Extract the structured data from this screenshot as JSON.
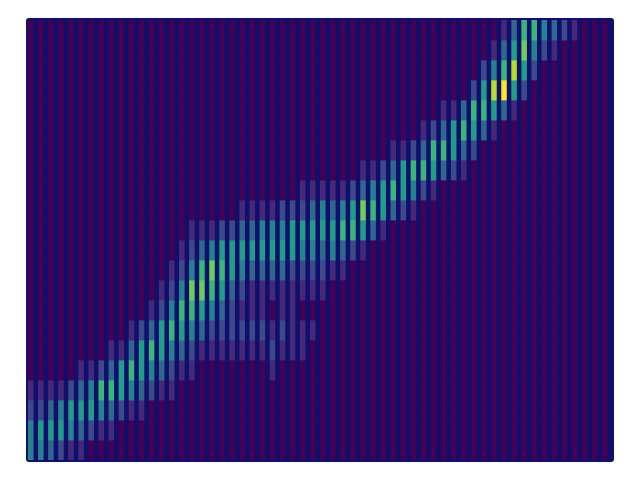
{
  "chart_data": {
    "type": "heatmap",
    "color": "viridis",
    "tick_labels": false,
    "xlim": [
      0,
      58
    ],
    "ylim": [
      0,
      22
    ],
    "color_range": [
      0,
      9
    ],
    "cells": [
      [
        4,
        4,
        2,
        1,
        0,
        0,
        0,
        0,
        0,
        0,
        0,
        0,
        0,
        0,
        0,
        0,
        0,
        0,
        0,
        0,
        0,
        0
      ],
      [
        4,
        5,
        2,
        1,
        0,
        0,
        0,
        0,
        0,
        0,
        0,
        0,
        0,
        0,
        0,
        0,
        0,
        0,
        0,
        0,
        0,
        0
      ],
      [
        3,
        5,
        3,
        1,
        0,
        0,
        0,
        0,
        0,
        0,
        0,
        0,
        0,
        0,
        0,
        0,
        0,
        0,
        0,
        0,
        0,
        0
      ],
      [
        2,
        5,
        4,
        1,
        0,
        0,
        0,
        0,
        0,
        0,
        0,
        0,
        0,
        0,
        0,
        0,
        0,
        0,
        0,
        0,
        0,
        0
      ],
      [
        1,
        4,
        5,
        2,
        0,
        0,
        0,
        0,
        0,
        0,
        0,
        0,
        0,
        0,
        0,
        0,
        0,
        0,
        0,
        0,
        0,
        0
      ],
      [
        1,
        3,
        5,
        3,
        1,
        0,
        0,
        0,
        0,
        0,
        0,
        0,
        0,
        0,
        0,
        0,
        0,
        0,
        0,
        0,
        0,
        0
      ],
      [
        0,
        2,
        5,
        4,
        1,
        0,
        0,
        0,
        0,
        0,
        0,
        0,
        0,
        0,
        0,
        0,
        0,
        0,
        0,
        0,
        0,
        0
      ],
      [
        0,
        1,
        4,
        6,
        2,
        0,
        0,
        0,
        0,
        0,
        0,
        0,
        0,
        0,
        0,
        0,
        0,
        0,
        0,
        0,
        0,
        0
      ],
      [
        0,
        1,
        3,
        6,
        3,
        1,
        0,
        0,
        0,
        0,
        0,
        0,
        0,
        0,
        0,
        0,
        0,
        0,
        0,
        0,
        0,
        0
      ],
      [
        0,
        0,
        2,
        5,
        5,
        1,
        0,
        0,
        0,
        0,
        0,
        0,
        0,
        0,
        0,
        0,
        0,
        0,
        0,
        0,
        0,
        0
      ],
      [
        0,
        0,
        1,
        4,
        6,
        3,
        1,
        0,
        0,
        0,
        0,
        0,
        0,
        0,
        0,
        0,
        0,
        0,
        0,
        0,
        0,
        0
      ],
      [
        0,
        0,
        1,
        3,
        5,
        5,
        2,
        0,
        0,
        0,
        0,
        0,
        0,
        0,
        0,
        0,
        0,
        0,
        0,
        0,
        0,
        0
      ],
      [
        0,
        0,
        0,
        2,
        4,
        6,
        3,
        1,
        0,
        0,
        0,
        0,
        0,
        0,
        0,
        0,
        0,
        0,
        0,
        0,
        0,
        0
      ],
      [
        0,
        0,
        0,
        1,
        3,
        5,
        5,
        2,
        1,
        0,
        0,
        0,
        0,
        0,
        0,
        0,
        0,
        0,
        0,
        0,
        0,
        0
      ],
      [
        0,
        0,
        0,
        1,
        2,
        4,
        6,
        4,
        2,
        1,
        0,
        0,
        0,
        0,
        0,
        0,
        0,
        0,
        0,
        0,
        0,
        0
      ],
      [
        0,
        0,
        0,
        0,
        1,
        3,
        5,
        6,
        4,
        2,
        1,
        0,
        0,
        0,
        0,
        0,
        0,
        0,
        0,
        0,
        0,
        0
      ],
      [
        0,
        0,
        0,
        0,
        1,
        2,
        4,
        6,
        7,
        4,
        2,
        1,
        0,
        0,
        0,
        0,
        0,
        0,
        0,
        0,
        0,
        0
      ],
      [
        0,
        0,
        0,
        0,
        0,
        1,
        3,
        5,
        7,
        6,
        3,
        1,
        0,
        0,
        0,
        0,
        0,
        0,
        0,
        0,
        0,
        0
      ],
      [
        0,
        0,
        0,
        0,
        0,
        1,
        2,
        4,
        6,
        7,
        4,
        1,
        0,
        0,
        0,
        0,
        0,
        0,
        0,
        0,
        0,
        0
      ],
      [
        0,
        0,
        0,
        0,
        0,
        1,
        2,
        3,
        5,
        6,
        5,
        2,
        0,
        0,
        0,
        0,
        0,
        0,
        0,
        0,
        0,
        0
      ],
      [
        0,
        0,
        0,
        0,
        0,
        1,
        2,
        2,
        3,
        5,
        5,
        2,
        0,
        0,
        0,
        0,
        0,
        0,
        0,
        0,
        0,
        0
      ],
      [
        0,
        0,
        0,
        0,
        0,
        1,
        2,
        1,
        2,
        4,
        5,
        3,
        1,
        0,
        0,
        0,
        0,
        0,
        0,
        0,
        0,
        0
      ],
      [
        0,
        0,
        0,
        0,
        0,
        1,
        2,
        1,
        1,
        3,
        5,
        3,
        1,
        0,
        0,
        0,
        0,
        0,
        0,
        0,
        0,
        0
      ],
      [
        0,
        0,
        0,
        0,
        0,
        1,
        2,
        1,
        1,
        3,
        5,
        4,
        1,
        0,
        0,
        0,
        0,
        0,
        0,
        0,
        0,
        0
      ],
      [
        0,
        0,
        0,
        0,
        1,
        2,
        1,
        0,
        1,
        3,
        5,
        4,
        1,
        0,
        0,
        0,
        0,
        0,
        0,
        0,
        0,
        0
      ],
      [
        0,
        0,
        0,
        0,
        0,
        1,
        2,
        1,
        1,
        3,
        5,
        4,
        2,
        0,
        0,
        0,
        0,
        0,
        0,
        0,
        0,
        0
      ],
      [
        0,
        0,
        0,
        0,
        0,
        1,
        1,
        1,
        1,
        2,
        5,
        5,
        2,
        0,
        0,
        0,
        0,
        0,
        0,
        0,
        0,
        0
      ],
      [
        0,
        0,
        0,
        0,
        0,
        1,
        1,
        0,
        1,
        2,
        4,
        5,
        2,
        1,
        0,
        0,
        0,
        0,
        0,
        0,
        0,
        0
      ],
      [
        0,
        0,
        0,
        0,
        0,
        0,
        1,
        0,
        1,
        2,
        4,
        5,
        3,
        1,
        0,
        0,
        0,
        0,
        0,
        0,
        0,
        0
      ],
      [
        0,
        0,
        0,
        0,
        0,
        0,
        0,
        0,
        1,
        2,
        3,
        5,
        4,
        1,
        0,
        0,
        0,
        0,
        0,
        0,
        0,
        0
      ],
      [
        0,
        0,
        0,
        0,
        0,
        0,
        0,
        0,
        0,
        1,
        4,
        5,
        3,
        1,
        0,
        0,
        0,
        0,
        0,
        0,
        0,
        0
      ],
      [
        0,
        0,
        0,
        0,
        0,
        0,
        0,
        0,
        0,
        1,
        3,
        6,
        4,
        1,
        0,
        0,
        0,
        0,
        0,
        0,
        0,
        0
      ],
      [
        0,
        0,
        0,
        0,
        0,
        0,
        0,
        0,
        0,
        0,
        2,
        6,
        5,
        2,
        0,
        0,
        0,
        0,
        0,
        0,
        0,
        0
      ],
      [
        0,
        0,
        0,
        0,
        0,
        0,
        0,
        0,
        0,
        0,
        1,
        5,
        7,
        3,
        1,
        0,
        0,
        0,
        0,
        0,
        0,
        0
      ],
      [
        0,
        0,
        0,
        0,
        0,
        0,
        0,
        0,
        0,
        0,
        0,
        3,
        6,
        4,
        1,
        0,
        0,
        0,
        0,
        0,
        0,
        0
      ],
      [
        0,
        0,
        0,
        0,
        0,
        0,
        0,
        0,
        0,
        0,
        0,
        1,
        5,
        5,
        2,
        0,
        0,
        0,
        0,
        0,
        0,
        0
      ],
      [
        0,
        0,
        0,
        0,
        0,
        0,
        0,
        0,
        0,
        0,
        0,
        0,
        3,
        6,
        3,
        1,
        0,
        0,
        0,
        0,
        0,
        0
      ],
      [
        0,
        0,
        0,
        0,
        0,
        0,
        0,
        0,
        0,
        0,
        0,
        0,
        2,
        5,
        5,
        1,
        0,
        0,
        0,
        0,
        0,
        0
      ],
      [
        0,
        0,
        0,
        0,
        0,
        0,
        0,
        0,
        0,
        0,
        0,
        0,
        1,
        4,
        6,
        2,
        0,
        0,
        0,
        0,
        0,
        0
      ],
      [
        0,
        0,
        0,
        0,
        0,
        0,
        0,
        0,
        0,
        0,
        0,
        0,
        0,
        2,
        6,
        3,
        1,
        0,
        0,
        0,
        0,
        0
      ],
      [
        0,
        0,
        0,
        0,
        0,
        0,
        0,
        0,
        0,
        0,
        0,
        0,
        0,
        1,
        5,
        6,
        2,
        0,
        0,
        0,
        0,
        0
      ],
      [
        0,
        0,
        0,
        0,
        0,
        0,
        0,
        0,
        0,
        0,
        0,
        0,
        0,
        0,
        3,
        6,
        3,
        1,
        0,
        0,
        0,
        0
      ],
      [
        0,
        0,
        0,
        0,
        0,
        0,
        0,
        0,
        0,
        0,
        0,
        0,
        0,
        0,
        2,
        5,
        5,
        1,
        0,
        0,
        0,
        0
      ],
      [
        0,
        0,
        0,
        0,
        0,
        0,
        0,
        0,
        0,
        0,
        0,
        0,
        0,
        0,
        1,
        3,
        6,
        3,
        0,
        0,
        0,
        0
      ],
      [
        0,
        0,
        0,
        0,
        0,
        0,
        0,
        0,
        0,
        0,
        0,
        0,
        0,
        0,
        0,
        2,
        5,
        6,
        2,
        0,
        0,
        0
      ],
      [
        0,
        0,
        0,
        0,
        0,
        0,
        0,
        0,
        0,
        0,
        0,
        0,
        0,
        0,
        0,
        0,
        3,
        6,
        5,
        2,
        0,
        0
      ],
      [
        0,
        0,
        0,
        0,
        0,
        0,
        0,
        0,
        0,
        0,
        0,
        0,
        0,
        0,
        0,
        0,
        1,
        5,
        8,
        4,
        1,
        0
      ],
      [
        0,
        0,
        0,
        0,
        0,
        0,
        0,
        0,
        0,
        0,
        0,
        0,
        0,
        0,
        0,
        0,
        0,
        3,
        9,
        6,
        3,
        1
      ],
      [
        0,
        0,
        0,
        0,
        0,
        0,
        0,
        0,
        0,
        0,
        0,
        0,
        0,
        0,
        0,
        0,
        0,
        1,
        5,
        8,
        5,
        3
      ],
      [
        0,
        0,
        0,
        0,
        0,
        0,
        0,
        0,
        0,
        0,
        0,
        0,
        0,
        0,
        0,
        0,
        0,
        0,
        2,
        5,
        7,
        6
      ],
      [
        0,
        0,
        0,
        0,
        0,
        0,
        0,
        0,
        0,
        0,
        0,
        0,
        0,
        0,
        0,
        0,
        0,
        0,
        0,
        2,
        4,
        6
      ],
      [
        0,
        0,
        0,
        0,
        0,
        0,
        0,
        0,
        0,
        0,
        0,
        0,
        0,
        0,
        0,
        0,
        0,
        0,
        0,
        0,
        2,
        4
      ],
      [
        0,
        0,
        0,
        0,
        0,
        0,
        0,
        0,
        0,
        0,
        0,
        0,
        0,
        0,
        0,
        0,
        0,
        0,
        0,
        0,
        1,
        3
      ],
      [
        0,
        0,
        0,
        0,
        0,
        0,
        0,
        0,
        0,
        0,
        0,
        0,
        0,
        0,
        0,
        0,
        0,
        0,
        0,
        0,
        0,
        2
      ],
      [
        0,
        0,
        0,
        0,
        0,
        0,
        0,
        0,
        0,
        0,
        0,
        0,
        0,
        0,
        0,
        0,
        0,
        0,
        0,
        0,
        0,
        1
      ],
      [
        0,
        0,
        0,
        0,
        0,
        0,
        0,
        0,
        0,
        0,
        0,
        0,
        0,
        0,
        0,
        0,
        0,
        0,
        0,
        0,
        0,
        0
      ],
      [
        0,
        0,
        0,
        0,
        0,
        0,
        0,
        0,
        0,
        0,
        0,
        0,
        0,
        0,
        0,
        0,
        0,
        0,
        0,
        0,
        0,
        0
      ],
      [
        0,
        0,
        0,
        0,
        0,
        0,
        0,
        0,
        0,
        0,
        0,
        0,
        0,
        0,
        0,
        0,
        0,
        0,
        0,
        0,
        0,
        0
      ]
    ]
  }
}
